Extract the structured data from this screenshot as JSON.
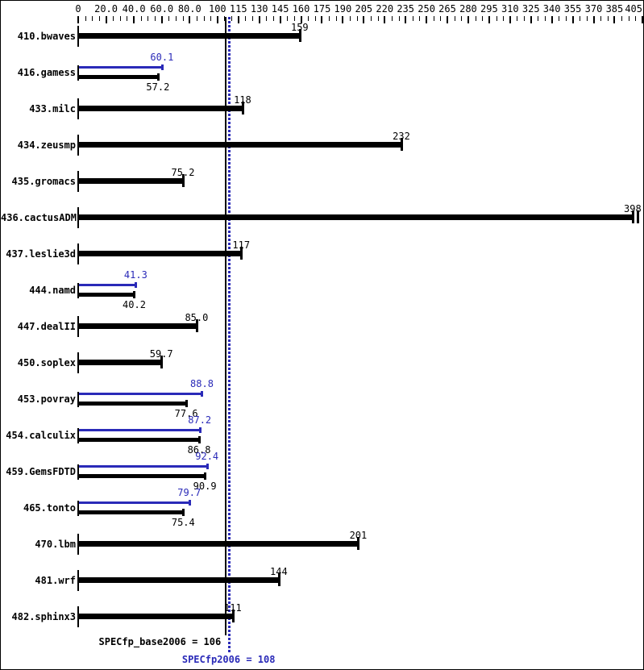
{
  "chart_data": {
    "type": "bar",
    "orientation": "horizontal",
    "grid": false,
    "axis": {
      "position": "top",
      "min": 0,
      "max": 405,
      "minor_tick_step": 5,
      "major_ticks": [
        {
          "value": 0,
          "label": "0"
        },
        {
          "value": 20,
          "label": "20.0"
        },
        {
          "value": 40,
          "label": "40.0"
        },
        {
          "value": 60,
          "label": "60.0"
        },
        {
          "value": 80,
          "label": "80.0"
        },
        {
          "value": 100,
          "label": "100"
        },
        {
          "value": 115,
          "label": "115"
        },
        {
          "value": 130,
          "label": "130"
        },
        {
          "value": 145,
          "label": "145"
        },
        {
          "value": 160,
          "label": "160"
        },
        {
          "value": 175,
          "label": "175"
        },
        {
          "value": 190,
          "label": "190"
        },
        {
          "value": 205,
          "label": "205"
        },
        {
          "value": 220,
          "label": "220"
        },
        {
          "value": 235,
          "label": "235"
        },
        {
          "value": 250,
          "label": "250"
        },
        {
          "value": 265,
          "label": "265"
        },
        {
          "value": 280,
          "label": "280"
        },
        {
          "value": 295,
          "label": "295"
        },
        {
          "value": 310,
          "label": "310"
        },
        {
          "value": 325,
          "label": "325"
        },
        {
          "value": 340,
          "label": "340"
        },
        {
          "value": 355,
          "label": "355"
        },
        {
          "value": 370,
          "label": "370"
        },
        {
          "value": 385,
          "label": "385"
        },
        {
          "value": 405,
          "label": "405"
        }
      ]
    },
    "series": [
      {
        "name": "base",
        "color": "#000000"
      },
      {
        "name": "peak",
        "color": "#2a2ab8"
      }
    ],
    "benchmarks": [
      {
        "name": "410.bwaves",
        "base": 159,
        "base_label": "159"
      },
      {
        "name": "416.gamess",
        "base": 57.2,
        "base_label": "57.2",
        "peak": 60.1,
        "peak_label": "60.1"
      },
      {
        "name": "433.milc",
        "base": 118,
        "base_label": "118"
      },
      {
        "name": "434.zeusmp",
        "base": 232,
        "base_label": "232"
      },
      {
        "name": "435.gromacs",
        "base": 75.2,
        "base_label": "75.2"
      },
      {
        "name": "436.cactusADM",
        "base": 398,
        "base_label": "398",
        "extra_end_tick": 401.5
      },
      {
        "name": "437.leslie3d",
        "base": 117,
        "base_label": "117"
      },
      {
        "name": "444.namd",
        "base": 40.2,
        "base_label": "40.2",
        "peak": 41.3,
        "peak_label": "41.3"
      },
      {
        "name": "447.dealII",
        "base": 85.0,
        "base_label": "85.0"
      },
      {
        "name": "450.soplex",
        "base": 59.7,
        "base_label": "59.7"
      },
      {
        "name": "453.povray",
        "base": 77.6,
        "base_label": "77.6",
        "peak": 88.8,
        "peak_label": "88.8"
      },
      {
        "name": "454.calculix",
        "base": 86.8,
        "base_label": "86.8",
        "peak": 87.2,
        "peak_label": "87.2"
      },
      {
        "name": "459.GemsFDTD",
        "base": 90.9,
        "base_label": "90.9",
        "peak": 92.4,
        "peak_label": "92.4"
      },
      {
        "name": "465.tonto",
        "base": 75.4,
        "base_label": "75.4",
        "peak": 79.7,
        "peak_label": "79.7"
      },
      {
        "name": "470.lbm",
        "base": 201,
        "base_label": "201"
      },
      {
        "name": "481.wrf",
        "base": 144,
        "base_label": "144"
      },
      {
        "name": "482.sphinx3",
        "base": 111,
        "base_label": "111"
      }
    ],
    "reference_lines": [
      {
        "name": "base",
        "value": 106,
        "color": "#000000",
        "style": "solid"
      },
      {
        "name": "peak",
        "value": 108,
        "color": "#2a2ab8",
        "style": "dotted"
      }
    ],
    "summary": {
      "base_label": "SPECfp_base2006 = 106",
      "base_value": 106,
      "peak_label": "SPECfp2006 = 108",
      "peak_value": 108
    },
    "colors": {
      "base": "#000000",
      "peak": "#2a2ab8",
      "background": "#ffffff",
      "border": "#000000"
    }
  }
}
